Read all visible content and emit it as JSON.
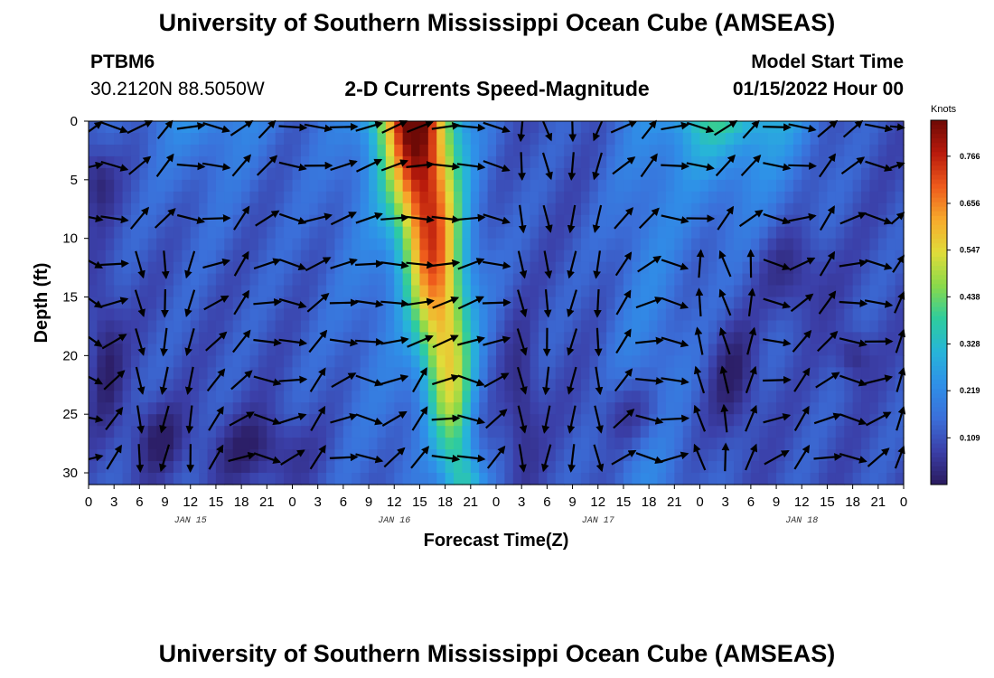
{
  "header": {
    "title": "University of Southern Mississippi Ocean Cube (AMSEAS)",
    "station": "PTBM6",
    "coords": "30.2120N  88.5050W",
    "plot_title": "2-D Currents Speed-Magnitude",
    "model_label": "Model Start Time",
    "model_time": "01/15/2022 Hour 00"
  },
  "footer": {
    "title": "University of Southern Mississippi Ocean Cube (AMSEAS)"
  },
  "chart_data": {
    "type": "heatmap",
    "title": "2-D Currents Speed-Magnitude",
    "xlabel": "Forecast Time(Z)",
    "ylabel": "Depth (ft)",
    "x_range_hours": [
      0,
      96
    ],
    "ylim": [
      0,
      31
    ],
    "x_tick_labels": [
      "0",
      "3",
      "6",
      "9",
      "12",
      "15",
      "18",
      "21",
      "0",
      "3",
      "6",
      "9",
      "12",
      "15",
      "18",
      "21",
      "0",
      "3",
      "6",
      "9",
      "12",
      "15",
      "18",
      "21",
      "0",
      "3",
      "6",
      "9",
      "12",
      "15",
      "18",
      "21",
      "0"
    ],
    "y_ticks": [
      0,
      5,
      10,
      15,
      20,
      25,
      30
    ],
    "day_labels": [
      {
        "label": "JAN 15",
        "hour": 12
      },
      {
        "label": "JAN 16",
        "hour": 36
      },
      {
        "label": "JAN 17",
        "hour": 60
      },
      {
        "label": "JAN 18",
        "hour": 84
      }
    ],
    "colorbar": {
      "unit": "Knots",
      "min": 0,
      "max": 0.85,
      "ticks": [
        "0.109",
        "0.219",
        "0.328",
        "0.438",
        "0.547",
        "0.656",
        "0.766"
      ]
    },
    "colors": {
      "scale": [
        "#2a1a5e",
        "#3b3fa8",
        "#3b6fd9",
        "#2f8fe8",
        "#27b4d9",
        "#2ecc9e",
        "#8ad94a",
        "#e0dc3a",
        "#f7a92c",
        "#ee5a1c",
        "#b81a0c",
        "#6e0a06"
      ]
    },
    "arrow_depth_rows_ft": [
      0.5,
      3.8,
      8.3,
      12.2,
      15.5,
      18.8,
      22.1,
      25.4,
      28.7
    ],
    "arrow_time_step_hours": 3,
    "speed_max_knots": 0.8,
    "max_speed_at_hour": 15,
    "notes": "Speed maximum (~0.8 kt) near hour 15 on JAN 16 at the surface; background speeds mostly 0.05–0.25 kt."
  }
}
